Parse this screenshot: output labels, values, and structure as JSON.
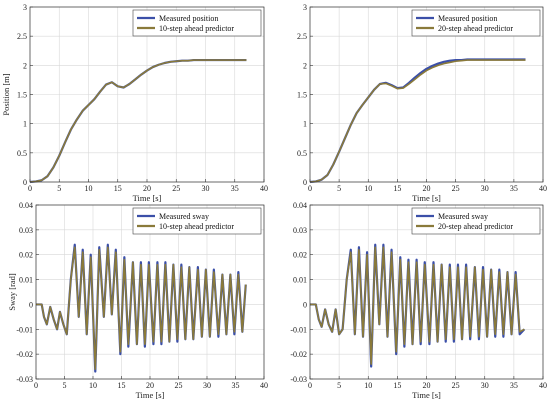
{
  "colors": {
    "measured": "#3b4fa8",
    "predictor": "#8a7a3a"
  },
  "chart_data": [
    {
      "type": "line",
      "panel": "top-left",
      "xlabel": "Time [s]",
      "ylabel": "Position [m]",
      "xlim": [
        0,
        40
      ],
      "ylim": [
        0,
        3
      ],
      "xticks": [
        0,
        5,
        10,
        15,
        20,
        25,
        30,
        35,
        40
      ],
      "yticks": [
        0,
        0.5,
        1,
        1.5,
        2,
        2.5,
        3
      ],
      "grid": true,
      "legend": "top-right",
      "series": [
        {
          "name": "Measured position",
          "kind": "measured",
          "x": [
            0,
            1,
            2,
            3,
            4,
            5,
            6,
            7,
            8,
            9,
            10,
            11,
            12,
            13,
            14,
            15,
            16,
            17,
            18,
            19,
            20,
            21,
            22,
            23,
            24,
            25,
            26,
            27,
            28,
            30,
            32,
            34,
            36,
            37
          ],
          "y": [
            0,
            0.01,
            0.03,
            0.1,
            0.25,
            0.45,
            0.68,
            0.9,
            1.07,
            1.22,
            1.32,
            1.42,
            1.55,
            1.67,
            1.71,
            1.64,
            1.62,
            1.68,
            1.76,
            1.84,
            1.91,
            1.97,
            2.01,
            2.04,
            2.06,
            2.07,
            2.08,
            2.08,
            2.09,
            2.09,
            2.09,
            2.09,
            2.09,
            2.09
          ]
        },
        {
          "name": "10-step ahead predictor",
          "kind": "predictor",
          "x": [
            0,
            1,
            2,
            3,
            4,
            5,
            6,
            7,
            8,
            9,
            10,
            11,
            12,
            13,
            14,
            15,
            16,
            17,
            18,
            19,
            20,
            21,
            22,
            23,
            24,
            25,
            26,
            27,
            28,
            30,
            32,
            34,
            36,
            37
          ],
          "y": [
            0,
            0.01,
            0.03,
            0.1,
            0.25,
            0.45,
            0.68,
            0.9,
            1.07,
            1.22,
            1.32,
            1.42,
            1.55,
            1.67,
            1.71,
            1.64,
            1.62,
            1.68,
            1.76,
            1.84,
            1.91,
            1.97,
            2.01,
            2.04,
            2.06,
            2.07,
            2.08,
            2.08,
            2.09,
            2.09,
            2.09,
            2.09,
            2.09,
            2.09
          ]
        }
      ]
    },
    {
      "type": "line",
      "panel": "top-right",
      "xlabel": "Time [s]",
      "ylabel": "",
      "xlim": [
        0,
        40
      ],
      "ylim": [
        0,
        3
      ],
      "xticks": [
        0,
        5,
        10,
        15,
        20,
        25,
        30,
        35,
        40
      ],
      "yticks": [
        0,
        0.5,
        1,
        1.5,
        2,
        2.5,
        3
      ],
      "grid": true,
      "legend": "top-right",
      "series": [
        {
          "name": "Measured position",
          "kind": "measured",
          "x": [
            0,
            1,
            2,
            3,
            4,
            5,
            6,
            7,
            8,
            9,
            10,
            11,
            12,
            13,
            14,
            15,
            16,
            17,
            18,
            19,
            20,
            21,
            22,
            23,
            24,
            25,
            26,
            27,
            28,
            30,
            32,
            34,
            36,
            37
          ],
          "y": [
            0,
            0.01,
            0.04,
            0.12,
            0.3,
            0.52,
            0.75,
            0.98,
            1.18,
            1.32,
            1.45,
            1.58,
            1.68,
            1.7,
            1.66,
            1.61,
            1.62,
            1.7,
            1.79,
            1.87,
            1.94,
            1.99,
            2.03,
            2.06,
            2.08,
            2.09,
            2.09,
            2.1,
            2.1,
            2.1,
            2.1,
            2.1,
            2.1,
            2.1
          ]
        },
        {
          "name": "20-step ahead predictor",
          "kind": "predictor",
          "x": [
            0,
            1,
            2,
            3,
            4,
            5,
            6,
            7,
            8,
            9,
            10,
            11,
            12,
            13,
            14,
            15,
            16,
            17,
            18,
            19,
            20,
            21,
            22,
            23,
            24,
            25,
            26,
            27,
            28,
            30,
            32,
            34,
            36,
            37
          ],
          "y": [
            0,
            0.01,
            0.04,
            0.12,
            0.3,
            0.52,
            0.75,
            0.98,
            1.18,
            1.32,
            1.45,
            1.58,
            1.68,
            1.69,
            1.65,
            1.6,
            1.61,
            1.68,
            1.76,
            1.84,
            1.91,
            1.96,
            2.0,
            2.03,
            2.05,
            2.07,
            2.08,
            2.09,
            2.09,
            2.09,
            2.09,
            2.09,
            2.09,
            2.09
          ]
        }
      ]
    },
    {
      "type": "line",
      "panel": "bottom-left",
      "xlabel": "Time [s]",
      "ylabel": "Sway [rad]",
      "xlim": [
        0,
        40
      ],
      "ylim": [
        -0.03,
        0.04
      ],
      "xticks": [
        0,
        5,
        10,
        15,
        20,
        25,
        30,
        35,
        40
      ],
      "yticks": [
        -0.03,
        -0.02,
        -0.01,
        0,
        0.01,
        0.02,
        0.03,
        0.04
      ],
      "grid": true,
      "legend": "top-right",
      "series": [
        {
          "name": "Measured sway",
          "kind": "measured",
          "x": [
            0,
            1,
            1.4,
            1.9,
            2.5,
            3.1,
            3.7,
            4.2,
            4.8,
            5.4,
            6.1,
            6.8,
            7.5,
            8.2,
            8.9,
            9.6,
            10.4,
            11.1,
            11.9,
            12.6,
            13.3,
            14.0,
            14.8,
            15.5,
            16.2,
            17.0,
            17.7,
            18.4,
            19.1,
            19.8,
            20.6,
            21.3,
            22.0,
            22.7,
            23.4,
            24.1,
            24.8,
            25.5,
            26.2,
            26.9,
            27.6,
            28.4,
            29.1,
            29.8,
            30.5,
            31.2,
            32.0,
            32.7,
            33.4,
            34.1,
            34.8,
            35.5,
            36.2,
            36.8
          ],
          "y": [
            0,
            0,
            -0.005,
            -0.008,
            -0.001,
            -0.006,
            -0.01,
            -0.003,
            -0.008,
            -0.012,
            0.01,
            0.024,
            -0.005,
            0.022,
            -0.012,
            0.02,
            -0.027,
            0.023,
            -0.005,
            0.024,
            -0.004,
            0.022,
            -0.02,
            0.019,
            -0.017,
            0.017,
            -0.016,
            0.017,
            -0.017,
            0.017,
            -0.016,
            0.017,
            -0.016,
            0.017,
            -0.015,
            0.016,
            -0.015,
            0.016,
            -0.014,
            0.015,
            -0.014,
            0.015,
            -0.013,
            0.014,
            -0.013,
            0.014,
            -0.013,
            0.012,
            -0.012,
            0.012,
            -0.012,
            0.013,
            -0.011,
            0.008
          ]
        },
        {
          "name": "10-step ahead predictor",
          "kind": "predictor",
          "x": [
            0,
            1,
            1.4,
            1.9,
            2.5,
            3.1,
            3.7,
            4.2,
            4.8,
            5.4,
            6.1,
            6.8,
            7.5,
            8.2,
            8.9,
            9.6,
            10.4,
            11.1,
            11.9,
            12.6,
            13.3,
            14.0,
            14.8,
            15.5,
            16.2,
            17.0,
            17.7,
            18.4,
            19.1,
            19.8,
            20.6,
            21.3,
            22.0,
            22.7,
            23.4,
            24.1,
            24.8,
            25.5,
            26.2,
            26.9,
            27.6,
            28.4,
            29.1,
            29.8,
            30.5,
            31.2,
            32.0,
            32.7,
            33.4,
            34.1,
            34.8,
            35.5,
            36.2,
            36.8
          ],
          "y": [
            0,
            0,
            -0.005,
            -0.008,
            -0.001,
            -0.006,
            -0.01,
            -0.003,
            -0.008,
            -0.012,
            0.01,
            0.023,
            -0.005,
            0.021,
            -0.012,
            0.019,
            -0.026,
            0.022,
            -0.005,
            0.023,
            -0.004,
            0.021,
            -0.019,
            0.018,
            -0.016,
            0.017,
            -0.016,
            0.016,
            -0.016,
            0.016,
            -0.015,
            0.016,
            -0.015,
            0.016,
            -0.015,
            0.016,
            -0.014,
            0.015,
            -0.014,
            0.015,
            -0.014,
            0.014,
            -0.013,
            0.014,
            -0.013,
            0.013,
            -0.012,
            0.012,
            -0.012,
            0.012,
            -0.011,
            0.012,
            -0.011,
            0.008
          ]
        }
      ]
    },
    {
      "type": "line",
      "panel": "bottom-right",
      "xlabel": "Time [s]",
      "ylabel": "",
      "xlim": [
        0,
        40
      ],
      "ylim": [
        -0.03,
        0.04
      ],
      "xticks": [
        0,
        5,
        10,
        15,
        20,
        25,
        30,
        35,
        40
      ],
      "yticks": [
        -0.03,
        -0.02,
        -0.01,
        0,
        0.01,
        0.02,
        0.03,
        0.04
      ],
      "grid": true,
      "legend": "top-right",
      "series": [
        {
          "name": "Measured sway",
          "kind": "measured",
          "x": [
            0,
            1,
            1.5,
            2.0,
            2.6,
            3.2,
            3.8,
            4.4,
            5.0,
            5.6,
            6.3,
            7.0,
            7.7,
            8.4,
            9.1,
            9.8,
            10.5,
            11.2,
            11.9,
            12.6,
            13.3,
            14.0,
            14.8,
            15.5,
            16.2,
            16.9,
            17.6,
            18.3,
            19.0,
            19.7,
            20.5,
            21.2,
            21.9,
            22.6,
            23.3,
            24.0,
            24.7,
            25.4,
            26.1,
            26.8,
            27.5,
            28.3,
            29.0,
            29.7,
            30.4,
            31.1,
            31.8,
            32.5,
            33.2,
            33.9,
            34.6,
            35.3,
            36.0,
            36.8
          ],
          "y": [
            0,
            0,
            -0.006,
            -0.009,
            -0.002,
            -0.008,
            -0.011,
            -0.002,
            -0.012,
            -0.01,
            0.01,
            0.022,
            -0.012,
            0.023,
            -0.013,
            0.021,
            -0.025,
            0.024,
            -0.008,
            0.024,
            -0.013,
            0.022,
            -0.02,
            0.019,
            -0.017,
            0.018,
            -0.016,
            0.018,
            -0.016,
            0.017,
            -0.016,
            0.017,
            -0.015,
            0.016,
            -0.015,
            0.016,
            -0.015,
            0.016,
            -0.014,
            0.016,
            -0.014,
            0.015,
            -0.014,
            0.015,
            -0.013,
            0.014,
            -0.013,
            0.014,
            -0.013,
            0.013,
            -0.012,
            0.013,
            -0.012,
            -0.01
          ]
        },
        {
          "name": "20-step ahead predictor",
          "kind": "predictor",
          "x": [
            0,
            1,
            1.5,
            2.0,
            2.6,
            3.2,
            3.8,
            4.4,
            5.0,
            5.6,
            6.3,
            7.0,
            7.7,
            8.4,
            9.1,
            9.8,
            10.5,
            11.2,
            11.9,
            12.6,
            13.3,
            14.0,
            14.8,
            15.5,
            16.2,
            16.9,
            17.6,
            18.3,
            19.0,
            19.7,
            20.5,
            21.2,
            21.9,
            22.6,
            23.3,
            24.0,
            24.7,
            25.4,
            26.1,
            26.8,
            27.5,
            28.3,
            29.0,
            29.7,
            30.4,
            31.1,
            31.8,
            32.5,
            33.2,
            33.9,
            34.6,
            35.3,
            36.0,
            36.8
          ],
          "y": [
            0,
            0,
            -0.006,
            -0.009,
            -0.002,
            -0.008,
            -0.011,
            -0.002,
            -0.012,
            -0.01,
            0.01,
            0.021,
            -0.012,
            0.022,
            -0.013,
            0.02,
            -0.024,
            0.023,
            -0.008,
            0.023,
            -0.013,
            0.021,
            -0.019,
            0.018,
            -0.016,
            0.017,
            -0.016,
            0.017,
            -0.015,
            0.016,
            -0.015,
            0.016,
            -0.015,
            0.016,
            -0.014,
            0.015,
            -0.014,
            0.015,
            -0.014,
            0.015,
            -0.013,
            0.015,
            -0.013,
            0.014,
            -0.013,
            0.014,
            -0.012,
            0.013,
            -0.012,
            0.013,
            -0.012,
            0.012,
            -0.011,
            -0.01
          ]
        }
      ]
    }
  ]
}
